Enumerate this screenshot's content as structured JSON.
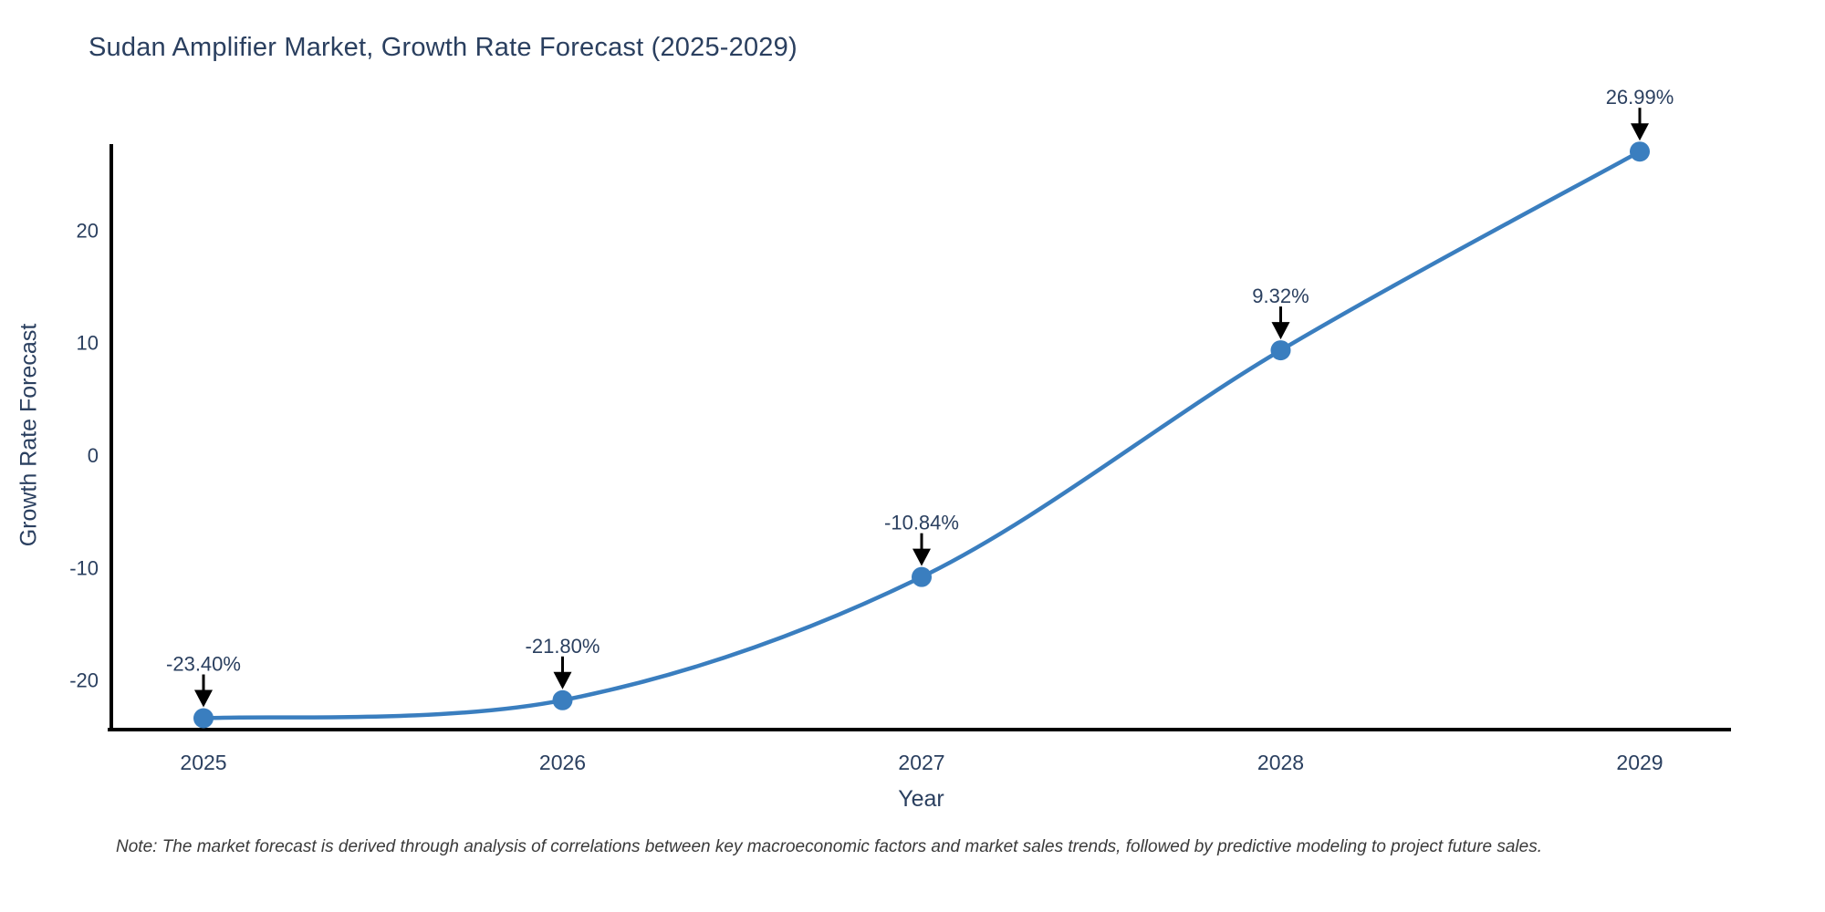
{
  "chart": {
    "title": "Sudan Amplifier Market, Growth Rate Forecast (2025-2029)",
    "xlabel": "Year",
    "ylabel": "Growth Rate Forecast",
    "note": "Note: The market forecast is derived through analysis of correlations between key macroeconomic factors and market sales trends, followed by predictive modeling to project future sales.",
    "colors": {
      "line": "#3a7ebf",
      "marker": "#3a7ebf",
      "axis": "#000000",
      "tick_text": "#2a3f5f",
      "annotation_text": "#2a3f5f",
      "annotation_arrow": "#000000",
      "note_text": "#3a3a3a",
      "background": "#ffffff"
    }
  },
  "chart_data": {
    "type": "line",
    "title": "Sudan Amplifier Market, Growth Rate Forecast (2025-2029)",
    "xlabel": "Year",
    "ylabel": "Growth Rate Forecast",
    "categories": [
      "2025",
      "2026",
      "2027",
      "2028",
      "2029"
    ],
    "series": [
      {
        "name": "Growth Rate Forecast",
        "values": [
          -23.4,
          -21.8,
          -10.84,
          9.32,
          26.99
        ],
        "point_labels": [
          "-23.40%",
          "-21.80%",
          "-10.84%",
          "9.32%",
          "26.99%"
        ]
      }
    ],
    "yticks": [
      20,
      10,
      0,
      -10,
      -20
    ],
    "ylim": [
      -24.6,
      27.6
    ],
    "line_shape": "spline",
    "markers": true,
    "grid": false,
    "legend_visible": false,
    "annotations_style": "down-arrow-with-label"
  }
}
